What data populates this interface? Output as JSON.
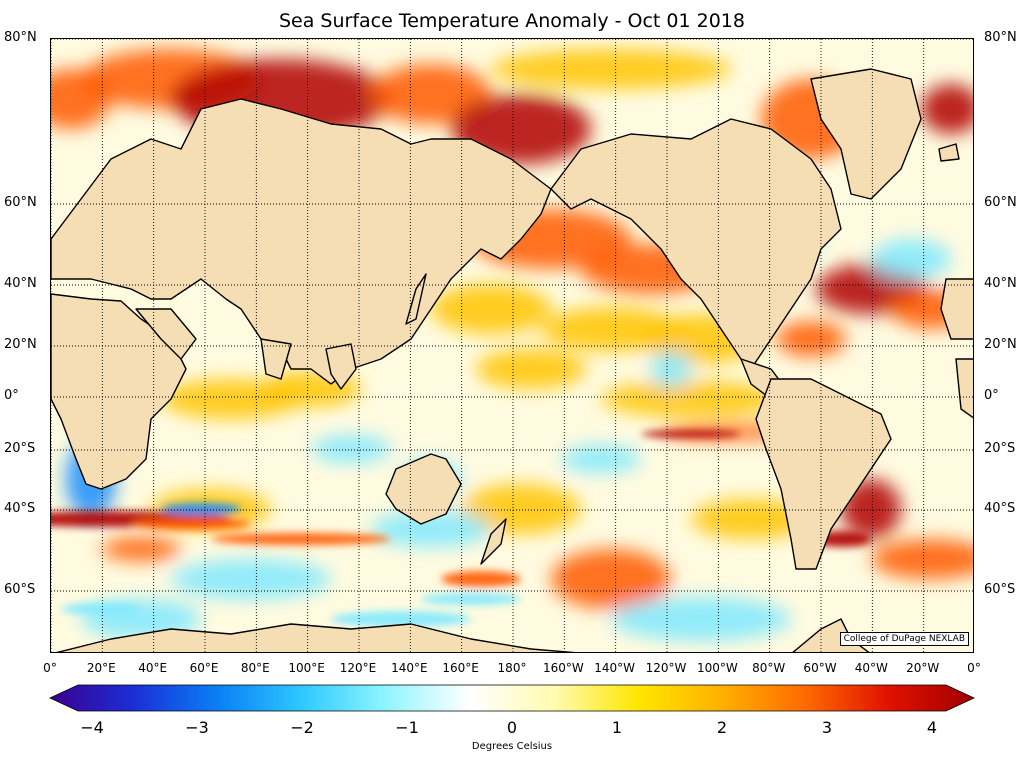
{
  "title": "Sea Surface Temperature Anomaly - Oct 01 2018",
  "credit": "College of DuPage NEXLAB",
  "latitude_labels": [
    "80°N",
    "60°N",
    "40°N",
    "20°N",
    "0°",
    "20°S",
    "40°S",
    "60°S"
  ],
  "longitude_labels": [
    "0°",
    "20°E",
    "40°E",
    "60°E",
    "80°E",
    "100°E",
    "120°E",
    "140°E",
    "160°E",
    "180°",
    "160°W",
    "140°W",
    "120°W",
    "100°W",
    "80°W",
    "60°W",
    "40°W",
    "20°W",
    "0°"
  ],
  "colorbar": {
    "tick_labels": [
      "−4",
      "−3",
      "−2",
      "−1",
      "0",
      "1",
      "2",
      "3",
      "4"
    ],
    "unit_label": "Degrees Celsius",
    "range": [
      -4,
      4
    ],
    "colors": [
      "#3b0090",
      "#1a2fd6",
      "#0a7ff5",
      "#2ec9ff",
      "#8ff5ff",
      "#ffffff",
      "#fffbb0",
      "#ffe600",
      "#ffb000",
      "#ff6a00",
      "#e01000",
      "#a00000"
    ]
  },
  "map_colors": {
    "land": "#f5deb3",
    "coast": "#000000",
    "grid": "#000000",
    "ocean_neutral": "#fffbe0",
    "warm_strong": "#b00000",
    "warm": "#ff5a00",
    "warm_light": "#ffc400",
    "cool": "#7fe9ff",
    "cool_strong": "#1a8dff"
  }
}
